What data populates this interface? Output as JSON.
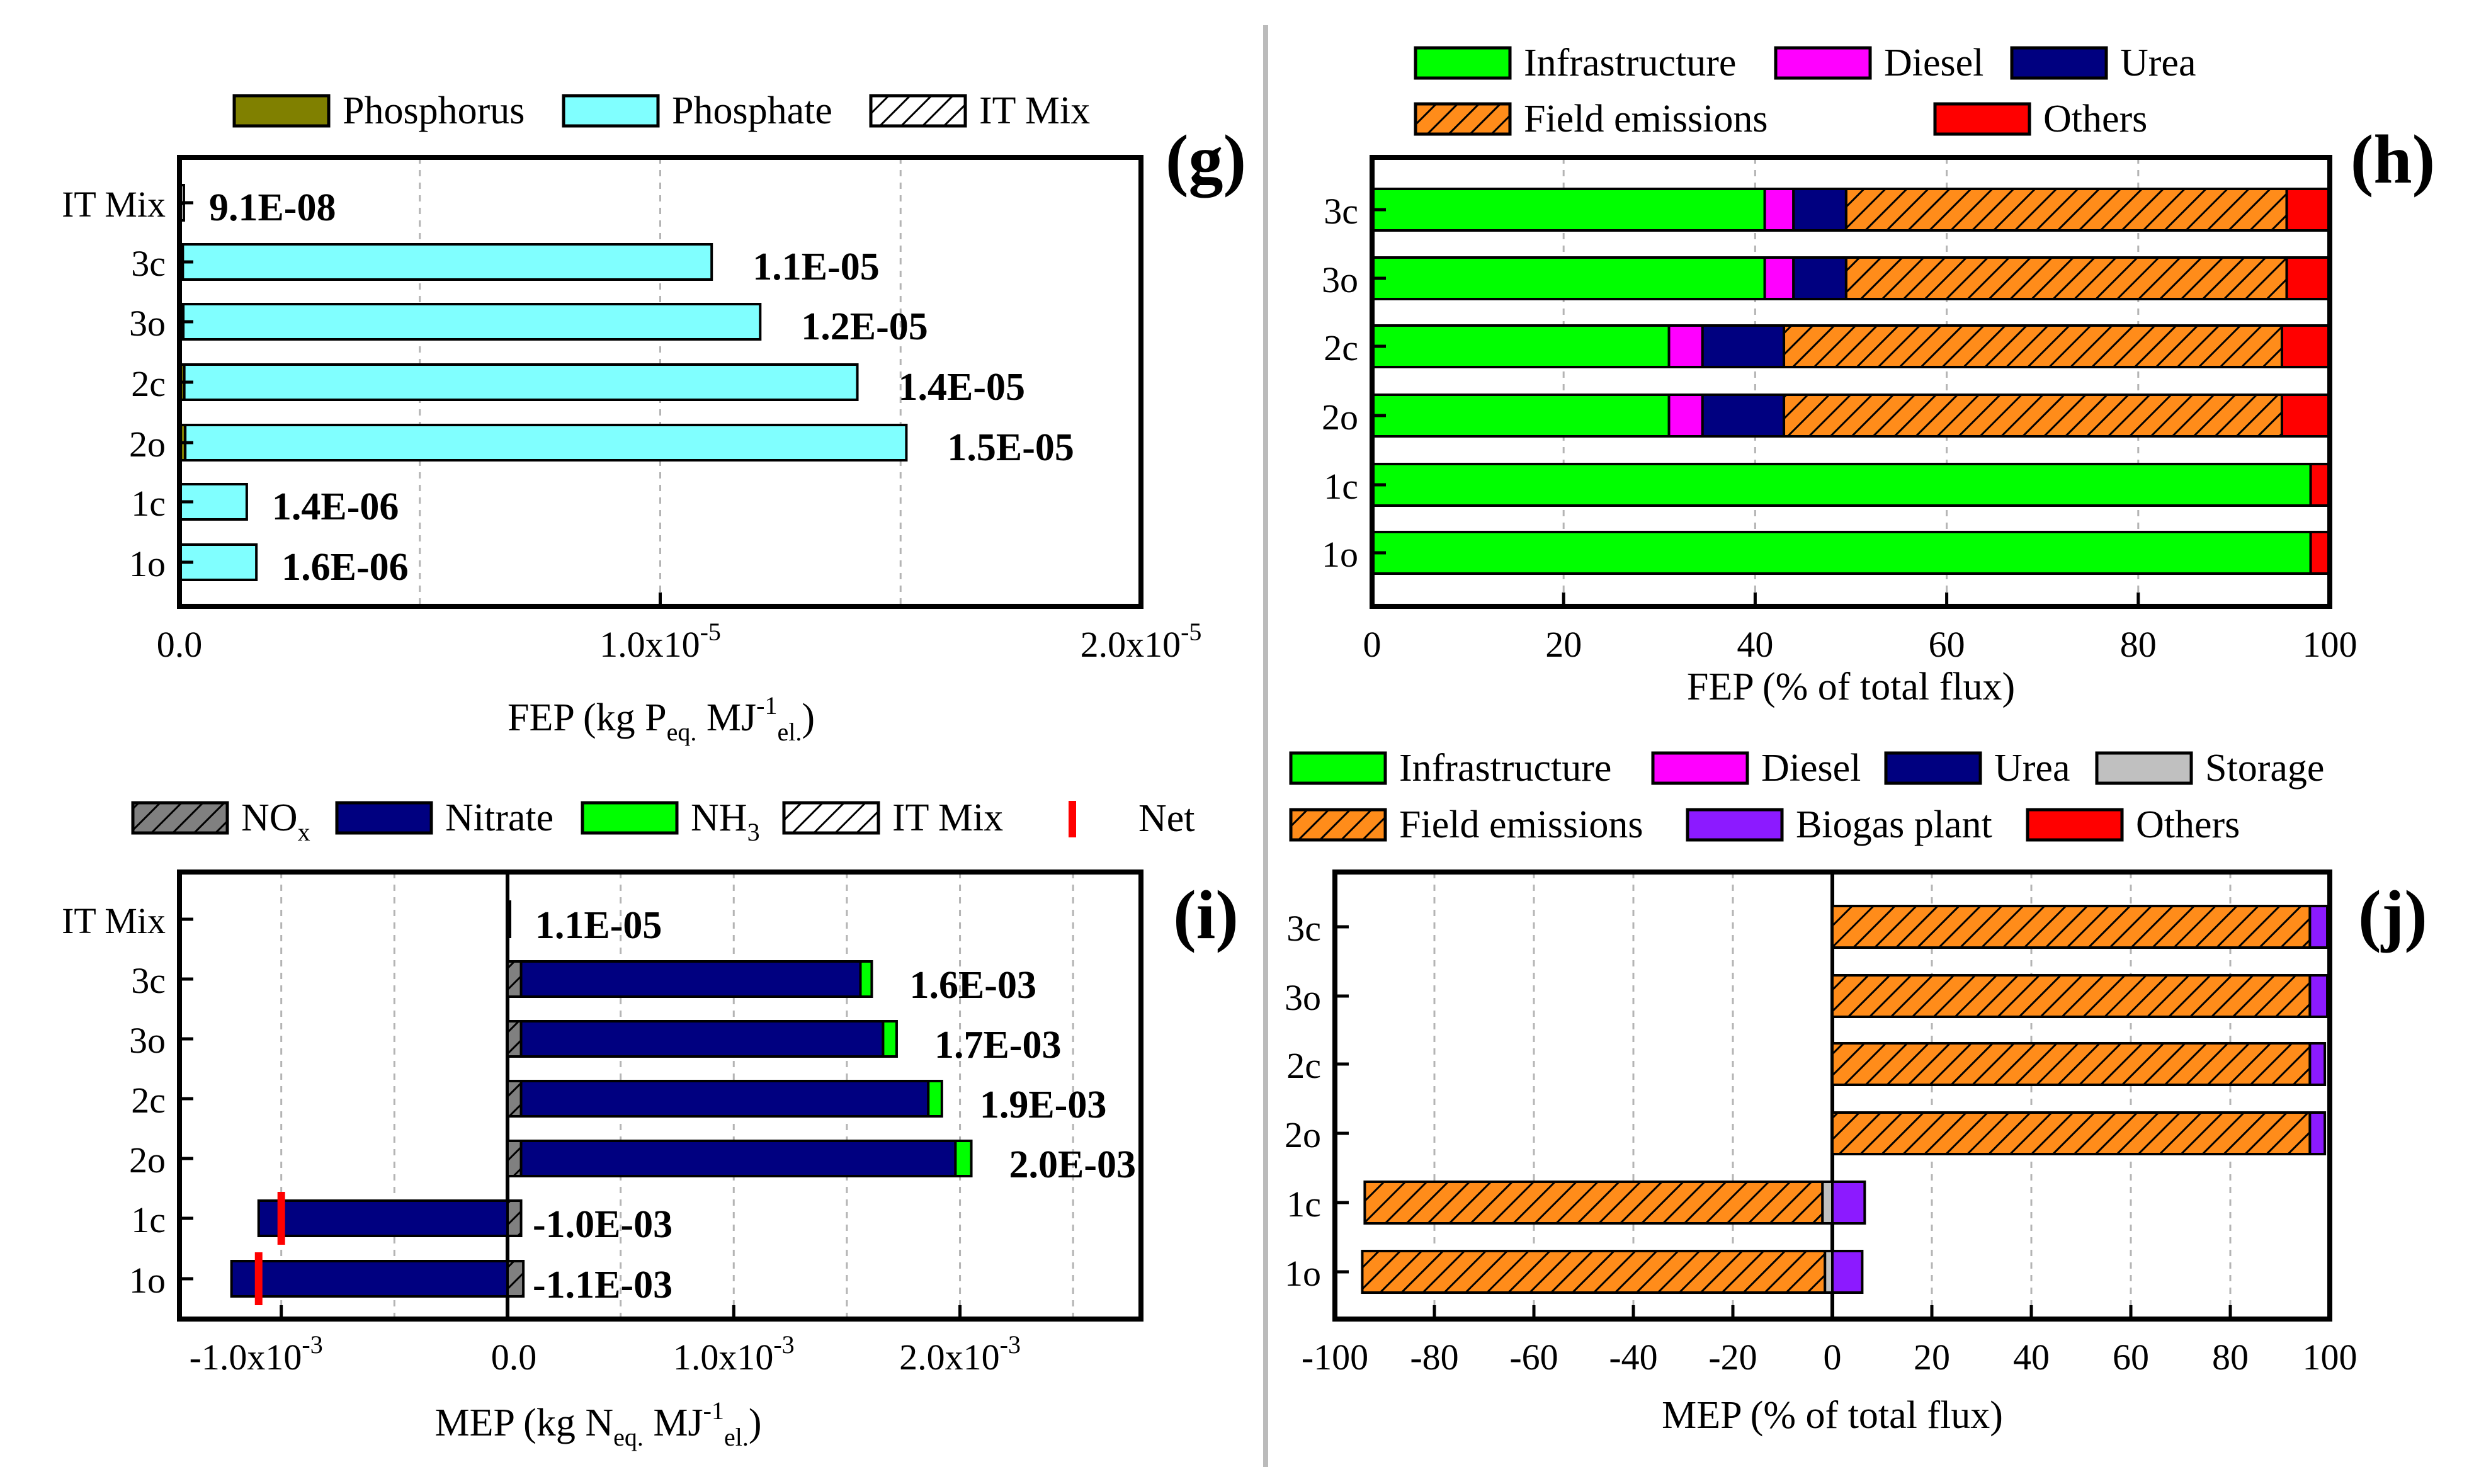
{
  "figure": {
    "divider_color": "#bbbbbb",
    "colors": {
      "phosphorus": "#808000",
      "phosphate": "#80ffff",
      "infrastructure": "#00ff00",
      "diesel": "#ff00ff",
      "urea": "#000080",
      "field_emissions": "#ff8c1a",
      "others": "#ff0000",
      "storage": "#c0c0c0",
      "biogas_plant": "#8c1aff",
      "nox": "#808080",
      "nitrate": "#000080",
      "nh3": "#00ff00",
      "net": "#ff0000",
      "it_mix": "#ffffff"
    }
  },
  "chart_data": [
    {
      "id": "g",
      "panel_label": "(g)",
      "type": "bar",
      "orientation": "horizontal",
      "stacked": true,
      "categories": [
        "IT Mix",
        "3c",
        "3o",
        "2c",
        "2o",
        "1c",
        "1o"
      ],
      "series": [
        {
          "name": "Phosphorus",
          "color_key": "phosphorus",
          "pattern": "solid",
          "values": [
            0,
            7e-08,
            8e-08,
            1e-07,
            1.2e-07,
            0,
            0
          ]
        },
        {
          "name": "Phosphate",
          "color_key": "phosphate",
          "pattern": "solid",
          "values": [
            0,
            1.1e-05,
            1.2e-05,
            1.4e-05,
            1.5e-05,
            1.4e-06,
            1.6e-06
          ]
        },
        {
          "name": "IT Mix",
          "color_key": "it_mix",
          "pattern": "hatch",
          "values": [
            9.1e-08,
            0,
            0,
            0,
            0,
            0,
            0
          ]
        }
      ],
      "data_labels": [
        "9.1E-08",
        "1.1E-05",
        "1.2E-05",
        "1.4E-05",
        "1.5E-05",
        "1.4E-06",
        "1.6E-06"
      ],
      "xlim": [
        0,
        2e-05
      ],
      "xticks": [
        0,
        1e-05,
        2e-05
      ],
      "xtick_labels": [
        {
          "mantissa": "0.0",
          "exp": ""
        },
        {
          "mantissa": "1.0x10",
          "exp": "-5"
        },
        {
          "mantissa": "2.0x10",
          "exp": "-5"
        }
      ],
      "xgrid": [
        5e-06,
        1e-05,
        1.5e-05
      ],
      "xlabel": {
        "pre": "FEP (kg P",
        "sub1": "eq.",
        "mid": " MJ",
        "sup": "-1",
        "sub2": "el.",
        "post": ")"
      },
      "legend_position": "top"
    },
    {
      "id": "h",
      "panel_label": "(h)",
      "type": "bar",
      "orientation": "horizontal",
      "stacked": true,
      "categories": [
        "3c",
        "3o",
        "2c",
        "2o",
        "1c",
        "1o"
      ],
      "series": [
        {
          "name": "Infrastructure",
          "color_key": "infrastructure",
          "pattern": "solid",
          "values": [
            41,
            41,
            31,
            31,
            98,
            98
          ]
        },
        {
          "name": "Diesel",
          "color_key": "diesel",
          "pattern": "solid",
          "values": [
            3,
            3,
            3.5,
            3.5,
            0,
            0
          ]
        },
        {
          "name": "Urea",
          "color_key": "urea",
          "pattern": "solid",
          "values": [
            5.5,
            5.5,
            8.5,
            8.5,
            0,
            0
          ]
        },
        {
          "name": "Field emissions",
          "color_key": "field_emissions",
          "pattern": "hatch",
          "values": [
            46,
            46,
            52,
            52,
            0,
            0
          ]
        },
        {
          "name": "Others",
          "color_key": "others",
          "pattern": "solid",
          "values": [
            4.5,
            4.5,
            5,
            5,
            2,
            2
          ]
        }
      ],
      "xlim": [
        0,
        100
      ],
      "xticks": [
        0,
        20,
        40,
        60,
        80,
        100
      ],
      "xgrid": [
        20,
        40,
        60,
        80
      ],
      "xlabel": "FEP (% of total flux)",
      "legend_position": "top"
    },
    {
      "id": "i",
      "panel_label": "(i)",
      "type": "bar",
      "orientation": "horizontal",
      "stacked": true,
      "categories": [
        "IT Mix",
        "3c",
        "3o",
        "2c",
        "2o",
        "1c",
        "1o"
      ],
      "series": [
        {
          "name": "NO",
          "name_sub": "x",
          "color_key": "nox",
          "pattern": "hatch",
          "values": [
            0,
            6e-05,
            6e-05,
            6e-05,
            6e-05,
            6e-05,
            7e-05
          ]
        },
        {
          "name": "Nitrate",
          "color_key": "nitrate",
          "pattern": "solid",
          "values": [
            0,
            0.0015,
            0.0016,
            0.0018,
            0.00192,
            -0.0011,
            -0.00122
          ]
        },
        {
          "name": "NH",
          "name_sub": "3",
          "color_key": "nh3",
          "pattern": "solid",
          "values": [
            0,
            5e-05,
            6e-05,
            6e-05,
            7e-05,
            0,
            0
          ]
        },
        {
          "name": "IT Mix",
          "color_key": "it_mix",
          "pattern": "hatch",
          "values": [
            1.1e-05,
            0,
            0,
            0,
            0,
            0,
            0
          ]
        }
      ],
      "net": {
        "name": "Net",
        "color_key": "net",
        "values": [
          1.1e-05,
          0.0016,
          0.0017,
          0.0019,
          0.002,
          -0.001,
          -0.0011
        ]
      },
      "data_labels": [
        "1.1E-05",
        "1.6E-03",
        "1.7E-03",
        "1.9E-03",
        "2.0E-03",
        "-1.0E-03",
        "-1.1E-03"
      ],
      "xlim": [
        -0.00145,
        0.0028
      ],
      "xticks": [
        -0.001,
        0,
        0.001,
        0.002
      ],
      "xtick_labels": [
        {
          "mantissa": "-1.0x10",
          "exp": "-3"
        },
        {
          "mantissa": "0.0",
          "exp": ""
        },
        {
          "mantissa": "1.0x10",
          "exp": "-3"
        },
        {
          "mantissa": "2.0x10",
          "exp": "-3"
        }
      ],
      "xgrid": [
        -0.001,
        -0.0005,
        0.0005,
        0.001,
        0.0015,
        0.002,
        0.0025
      ],
      "xlabel": {
        "pre": "MEP (kg N",
        "sub1": "eq.",
        "mid": " MJ",
        "sup": "-1",
        "sub2": "el.",
        "post": ")"
      },
      "legend_position": "top"
    },
    {
      "id": "j",
      "panel_label": "(j)",
      "type": "bar",
      "orientation": "horizontal",
      "stacked": true,
      "categories": [
        "3c",
        "3o",
        "2c",
        "2o",
        "1c",
        "1o"
      ],
      "series": [
        {
          "name": "Infrastructure",
          "color_key": "infrastructure",
          "pattern": "solid",
          "values": [
            0,
            0,
            0,
            0,
            0,
            0
          ]
        },
        {
          "name": "Diesel",
          "color_key": "diesel",
          "pattern": "solid",
          "values": [
            0,
            0,
            0,
            0,
            0,
            0
          ]
        },
        {
          "name": "Urea",
          "color_key": "urea",
          "pattern": "solid",
          "values": [
            0,
            0,
            0,
            0,
            0,
            0
          ]
        },
        {
          "name": "Storage",
          "color_key": "storage",
          "pattern": "solid",
          "values": [
            0,
            0,
            0,
            0,
            -2,
            -1.5
          ]
        },
        {
          "name": "Field emissions",
          "color_key": "field_emissions",
          "pattern": "hatch",
          "values": [
            96,
            96,
            96,
            96,
            -92,
            -93
          ]
        },
        {
          "name": "Biogas plant",
          "color_key": "biogas_plant",
          "pattern": "solid",
          "values": [
            3.5,
            3.5,
            3,
            3,
            6.5,
            6
          ]
        },
        {
          "name": "Others",
          "color_key": "others",
          "pattern": "solid",
          "values": [
            0,
            0,
            0,
            0,
            0,
            0
          ]
        }
      ],
      "xlim": [
        -100,
        100
      ],
      "xticks": [
        -100,
        -80,
        -60,
        -40,
        -20,
        0,
        20,
        40,
        60,
        80,
        100
      ],
      "xgrid": [
        -80,
        -60,
        -40,
        -20,
        20,
        40,
        60,
        80
      ],
      "xlabel": "MEP (% of total flux)",
      "legend_position": "top"
    }
  ]
}
